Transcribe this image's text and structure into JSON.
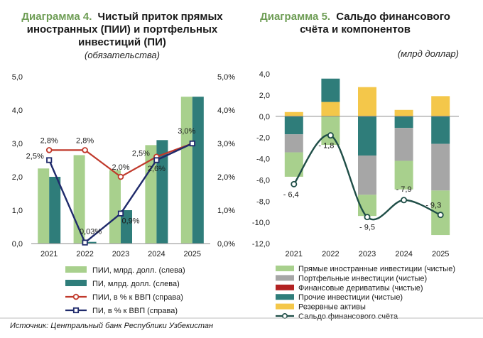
{
  "colors": {
    "fdi": "#a8d08d",
    "pi": "#2f7d7a",
    "fdi_pct": "#c0392b",
    "pi_pct": "#1f2a6b",
    "portfolio": "#a6a6a6",
    "derivatives": "#b22222",
    "other_inv": "#2f7d7a",
    "reserves": "#f4c74a",
    "balance": "#1f4e47",
    "title_accent": "#6e9d55"
  },
  "source": "Источник: Центральный банк Республики Узбекистан",
  "chart_data": [
    {
      "type": "bar",
      "title_prefix": "Диаграмма 4.",
      "title_lines": [
        "Чистый приток прямых",
        "иностранных (ПИИ) и портфельных",
        "инвестиций (ПИ)"
      ],
      "subtitle": "(обязательства)",
      "categories": [
        "2021",
        "2022",
        "2023",
        "2024",
        "2025"
      ],
      "ylim_left": [
        0,
        5
      ],
      "ylim_right": [
        0,
        5
      ],
      "yticks_left": [
        "0,0",
        "1,0",
        "2,0",
        "3,0",
        "4,0",
        "5,0"
      ],
      "yticks_right": [
        "0,0%",
        "1,0%",
        "2,0%",
        "3,0%",
        "4,0%",
        "5,0%"
      ],
      "series": [
        {
          "name": "ПИИ, млрд. долл. (слева)",
          "kind": "bar",
          "axis": "left",
          "values": [
            2.25,
            2.65,
            2.2,
            2.95,
            4.4
          ]
        },
        {
          "name": "ПИ, млрд. долл. (слева)",
          "kind": "bar",
          "axis": "left",
          "values": [
            2.0,
            0.05,
            1.0,
            3.1,
            4.4
          ]
        },
        {
          "name": "ПИИ, в % к ВВП (справа)",
          "kind": "line",
          "axis": "right",
          "values": [
            2.8,
            2.8,
            2.0,
            2.6,
            3.0
          ],
          "labels": [
            "2,8%",
            "2,8%",
            "2,0%",
            "2,6%",
            "3,0%"
          ]
        },
        {
          "name": "ПИ, в % к ВВП (справа)",
          "kind": "line",
          "axis": "right",
          "values": [
            2.5,
            0.03,
            0.9,
            2.5,
            3.0
          ],
          "labels": [
            "2,5%",
            "0,03%",
            "0,9%",
            "2,5%",
            ""
          ]
        }
      ],
      "grid": false,
      "legend": "bottom"
    },
    {
      "type": "bar",
      "stacked": true,
      "title_prefix": "Диаграмма 5.",
      "title_lines": [
        "Сальдо финансового",
        "счёта и компонентов"
      ],
      "unit_label": "(млрд доллар)",
      "categories": [
        "2021",
        "2022",
        "2023",
        "2024",
        "2025"
      ],
      "ylim": [
        -12,
        4
      ],
      "yticks": [
        "-12,0",
        "-10,0",
        "-8,0",
        "-6,0",
        "-4,0",
        "-2,0",
        "0,0",
        "2,0",
        "4,0"
      ],
      "series": [
        {
          "name": "Прямые иностранные инвестиции (чистые)",
          "kind": "bar",
          "values": [
            -2.3,
            -2.7,
            -2.0,
            -2.7,
            -4.2
          ]
        },
        {
          "name": "Портфельные инвестиции (чистые)",
          "kind": "bar",
          "values": [
            -1.7,
            0.0,
            -3.7,
            -3.1,
            -4.4
          ]
        },
        {
          "name": "Финансовые деривативы (чистые)",
          "kind": "bar",
          "values": [
            0.0,
            0.0,
            0.0,
            0.0,
            0.0
          ]
        },
        {
          "name": "Прочие инвестиции (чистые)",
          "kind": "bar",
          "values": [
            -1.7,
            2.2,
            -3.7,
            -1.1,
            -2.6
          ]
        },
        {
          "name": "Резервные активы",
          "kind": "bar",
          "values": [
            0.4,
            1.35,
            2.75,
            0.6,
            1.9
          ]
        },
        {
          "name": "Сальдо финансового счёта",
          "kind": "line",
          "values": [
            -6.4,
            -1.8,
            -9.5,
            -7.9,
            -9.3
          ],
          "labels": [
            "- 6,4",
            "- 1,8",
            "- 9,5",
            "- 7,9",
            "- 9,3"
          ]
        }
      ],
      "grid": false,
      "legend": "bottom"
    }
  ]
}
